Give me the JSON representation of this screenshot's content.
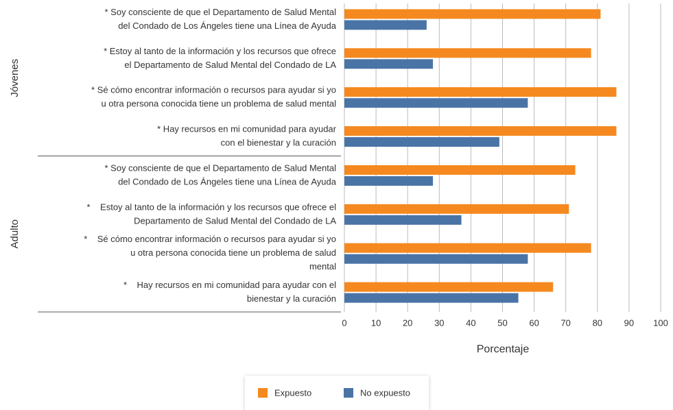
{
  "chart_data": {
    "type": "bar",
    "orientation": "horizontal",
    "xlabel": "Porcentaje",
    "groups": [
      "Jóvenes",
      "Adulto"
    ],
    "categories": [
      [
        "* Soy consciente de que el Departamento de Salud Mental",
        "del Condado de Los Ángeles tiene una Línea de Ayuda"
      ],
      [
        "* Estoy al tanto de la información y los recursos que ofrece",
        "el Departamento de Salud Mental del Condado de LA"
      ],
      [
        "* Sé cómo encontrar información o recursos para ayudar si yo",
        "u otra persona conocida tiene un problema de salud mental"
      ],
      [
        "* Hay recursos en mi comunidad para ayudar",
        "con el bienestar y la curación"
      ],
      [
        "* Soy consciente de que el Departamento de Salud Mental",
        "del Condado de Los Ángeles tiene una Línea de Ayuda"
      ],
      [
        "*    Estoy al tanto de la información y los recursos que ofrece el",
        "Departamento de Salud Mental del Condado de LA"
      ],
      [
        "*    Sé cómo encontrar información o recursos para ayudar si yo",
        "u otra persona conocida tiene un problema de salud",
        "mental"
      ],
      [
        "*    Hay recursos en mi comunidad para ayudar con el",
        "bienestar y la curación"
      ]
    ],
    "series": [
      {
        "name": "Expuesto",
        "color": "#f5891f",
        "values": [
          81,
          78,
          86,
          86,
          73,
          71,
          78,
          66
        ]
      },
      {
        "name": "No expuesto",
        "color": "#4a74a6",
        "values": [
          26,
          28,
          58,
          49,
          28,
          37,
          58,
          55
        ]
      }
    ],
    "xlim": [
      0,
      100
    ],
    "xticks": [
      0,
      10,
      20,
      30,
      40,
      50,
      60,
      70,
      80,
      90,
      100
    ],
    "grid": true
  }
}
